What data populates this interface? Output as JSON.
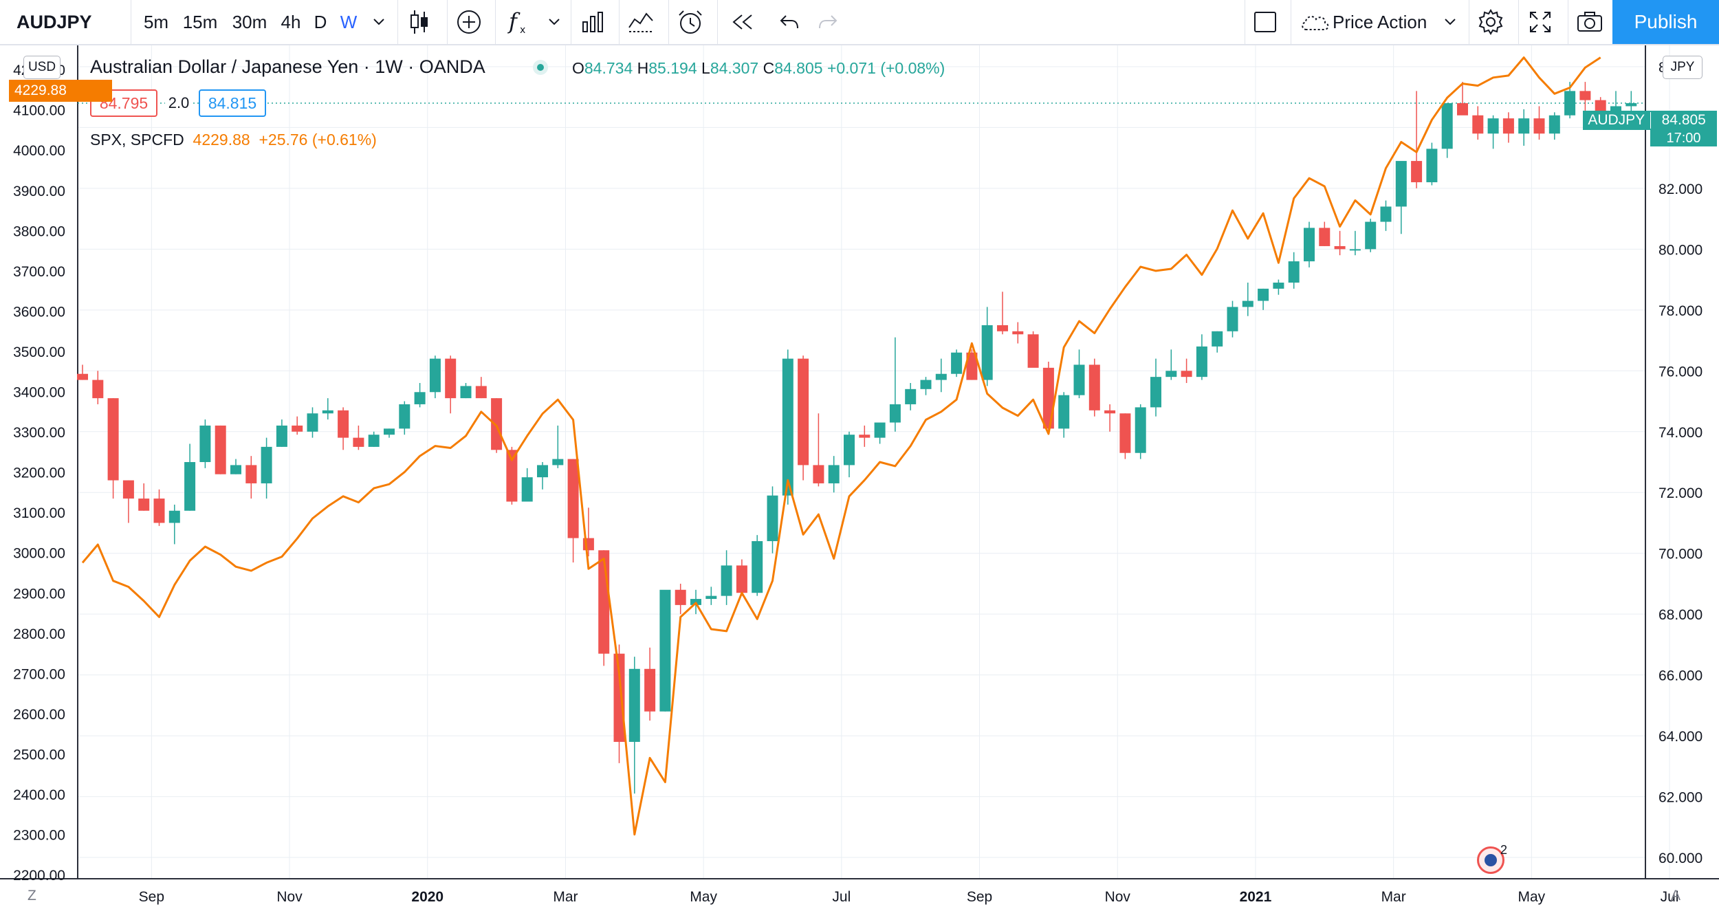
{
  "toolbar": {
    "symbol": "AUDJPY",
    "intervals": [
      "5m",
      "15m",
      "30m",
      "4h",
      "D",
      "W"
    ],
    "active_interval": "W",
    "template": "Price Action",
    "publish_label": "Publish"
  },
  "legend": {
    "title": "Australian Dollar / Japanese Yen · 1W · OANDA",
    "ohlc": {
      "o_label": "O",
      "o": "84.734",
      "h_label": "H",
      "h": "85.194",
      "l_label": "L",
      "l": "84.307",
      "c_label": "C",
      "c": "84.805",
      "change": "+0.071 (+0.08%)"
    },
    "bid": "84.795",
    "spread": "2.0",
    "ask": "84.815",
    "spx": {
      "name": "SPX, SPCFD",
      "value": "4229.88",
      "change": "+25.76 (+0.61%)"
    }
  },
  "left_axis": {
    "badge": "USD",
    "current_tag": "4229.88"
  },
  "right_axis": {
    "badge": "JPY",
    "current_symbol": "AUDJPY",
    "current_value": "84.805",
    "countdown": "17:00"
  },
  "bottom": {
    "z_label": "Z",
    "a_label": "A",
    "flag_count": "2"
  },
  "colors": {
    "up": "#26a69a",
    "down": "#ef5350",
    "spx_line": "#f57c00",
    "grid": "#e9eef3"
  },
  "chart_data": {
    "type": "candlestick+line",
    "timeframe": "1W",
    "x_tick_labels": [
      "Sep",
      "Nov",
      "2020",
      "Mar",
      "May",
      "Jul",
      "Sep",
      "Nov",
      "2021",
      "Mar",
      "May",
      "Jul"
    ],
    "left_ticks": [
      "2200.00",
      "2300.00",
      "2400.00",
      "2500.00",
      "2600.00",
      "2700.00",
      "2800.00",
      "2900.00",
      "3000.00",
      "3100.00",
      "3200.00",
      "3300.00",
      "3400.00",
      "3500.00",
      "3600.00",
      "3700.00",
      "3800.00",
      "3900.00",
      "4000.00",
      "4100.00",
      "4200.00"
    ],
    "right_ticks": [
      "60.000",
      "62.000",
      "64.000",
      "66.000",
      "68.000",
      "70.000",
      "72.000",
      "74.000",
      "76.000",
      "78.000",
      "80.000",
      "82.000",
      "84.000",
      "86.000"
    ],
    "left_range": [
      2190,
      4260
    ],
    "right_range": [
      59.3,
      86.7
    ],
    "candles": [
      [
        75.9,
        76.2,
        75.7,
        75.7
      ],
      [
        75.7,
        76.0,
        74.9,
        75.1
      ],
      [
        75.1,
        75.1,
        71.8,
        72.4
      ],
      [
        72.4,
        72.4,
        71.0,
        71.8
      ],
      [
        71.8,
        72.3,
        71.4,
        71.4
      ],
      [
        71.8,
        72.1,
        70.9,
        71.0
      ],
      [
        71.0,
        71.6,
        70.3,
        71.4
      ],
      [
        71.4,
        73.6,
        71.4,
        73.0
      ],
      [
        73.0,
        74.4,
        72.8,
        74.2
      ],
      [
        74.2,
        74.2,
        72.6,
        72.6
      ],
      [
        72.6,
        73.1,
        72.6,
        72.9
      ],
      [
        72.9,
        73.2,
        71.8,
        72.3
      ],
      [
        72.3,
        73.8,
        71.8,
        73.5
      ],
      [
        73.5,
        74.4,
        73.5,
        74.2
      ],
      [
        74.2,
        74.5,
        73.9,
        74.0
      ],
      [
        74.0,
        74.8,
        73.8,
        74.6
      ],
      [
        74.6,
        75.1,
        74.4,
        74.7
      ],
      [
        74.7,
        74.8,
        73.4,
        73.8
      ],
      [
        73.8,
        74.2,
        73.4,
        73.5
      ],
      [
        73.5,
        74.0,
        73.5,
        73.9
      ],
      [
        73.9,
        74.1,
        73.8,
        74.1
      ],
      [
        74.1,
        75.0,
        73.9,
        74.9
      ],
      [
        74.9,
        75.6,
        74.8,
        75.3
      ],
      [
        75.3,
        76.5,
        75.1,
        76.4
      ],
      [
        76.4,
        76.5,
        74.6,
        75.1
      ],
      [
        75.1,
        75.6,
        75.1,
        75.5
      ],
      [
        75.5,
        75.8,
        75.1,
        75.1
      ],
      [
        75.1,
        75.1,
        73.3,
        73.4
      ],
      [
        73.4,
        73.5,
        71.6,
        71.7
      ],
      [
        71.7,
        72.8,
        71.7,
        72.5
      ],
      [
        72.5,
        73.0,
        72.1,
        72.9
      ],
      [
        72.9,
        74.2,
        72.8,
        73.1
      ],
      [
        73.1,
        73.1,
        69.7,
        70.5
      ],
      [
        70.5,
        71.5,
        69.9,
        70.1
      ],
      [
        70.1,
        70.1,
        66.3,
        66.7
      ],
      [
        66.7,
        67.0,
        63.1,
        63.8
      ],
      [
        63.8,
        66.6,
        62.1,
        66.2
      ],
      [
        66.2,
        66.9,
        64.5,
        64.8
      ],
      [
        64.8,
        68.2,
        64.8,
        68.8
      ],
      [
        68.8,
        69.0,
        68.0,
        68.3
      ],
      [
        68.3,
        68.8,
        68.0,
        68.5
      ],
      [
        68.5,
        68.9,
        68.3,
        68.6
      ],
      [
        68.6,
        70.1,
        68.3,
        69.6
      ],
      [
        69.6,
        69.8,
        68.6,
        68.7
      ],
      [
        68.7,
        70.6,
        68.6,
        70.4
      ],
      [
        70.4,
        72.2,
        70.0,
        71.9
      ],
      [
        71.9,
        76.7,
        71.6,
        76.4
      ],
      [
        76.4,
        76.5,
        72.4,
        72.9
      ],
      [
        72.9,
        74.6,
        72.2,
        72.3
      ],
      [
        72.3,
        73.2,
        72.0,
        72.9
      ],
      [
        72.9,
        74.0,
        72.5,
        73.9
      ],
      [
        73.9,
        74.2,
        73.5,
        73.8
      ],
      [
        73.8,
        74.2,
        73.6,
        74.3
      ],
      [
        74.3,
        77.1,
        74.0,
        74.9
      ],
      [
        74.9,
        75.6,
        74.7,
        75.4
      ],
      [
        75.4,
        75.8,
        75.2,
        75.7
      ],
      [
        75.7,
        76.4,
        75.3,
        75.9
      ],
      [
        75.9,
        76.7,
        75.8,
        76.6
      ],
      [
        76.6,
        76.7,
        75.7,
        75.7
      ],
      [
        75.7,
        78.1,
        75.5,
        77.5
      ],
      [
        77.5,
        78.6,
        77.2,
        77.3
      ],
      [
        77.3,
        77.6,
        76.9,
        77.2
      ],
      [
        77.2,
        77.3,
        76.2,
        76.1
      ],
      [
        76.1,
        76.3,
        73.9,
        74.1
      ],
      [
        74.1,
        75.3,
        73.8,
        75.2
      ],
      [
        75.2,
        76.7,
        75.1,
        76.2
      ],
      [
        76.2,
        76.4,
        74.5,
        74.7
      ],
      [
        74.7,
        74.9,
        74.0,
        74.6
      ],
      [
        74.6,
        74.6,
        73.1,
        73.3
      ],
      [
        73.3,
        74.9,
        73.1,
        74.8
      ],
      [
        74.8,
        76.4,
        74.5,
        75.8
      ],
      [
        75.8,
        76.7,
        75.7,
        76.0
      ],
      [
        76.0,
        76.4,
        75.6,
        75.8
      ],
      [
        75.8,
        77.2,
        75.7,
        76.8
      ],
      [
        76.8,
        77.3,
        76.6,
        77.3
      ],
      [
        77.3,
        78.3,
        77.1,
        78.1
      ],
      [
        78.1,
        78.9,
        77.8,
        78.3
      ],
      [
        78.3,
        78.7,
        78.0,
        78.7
      ],
      [
        78.7,
        79.0,
        78.5,
        78.9
      ],
      [
        78.9,
        79.9,
        78.7,
        79.6
      ],
      [
        79.6,
        80.9,
        79.4,
        80.7
      ],
      [
        80.7,
        80.9,
        80.1,
        80.1
      ],
      [
        80.1,
        80.6,
        79.8,
        80.0
      ],
      [
        80.0,
        80.6,
        79.8,
        80.0
      ],
      [
        80.0,
        81.0,
        79.9,
        80.9
      ],
      [
        80.9,
        81.6,
        80.6,
        81.4
      ],
      [
        81.4,
        82.8,
        80.5,
        82.9
      ],
      [
        82.9,
        85.2,
        82.0,
        82.2
      ],
      [
        82.2,
        83.5,
        82.1,
        83.3
      ],
      [
        83.3,
        84.5,
        83.0,
        84.8
      ],
      [
        84.8,
        85.5,
        84.6,
        84.4
      ],
      [
        84.4,
        84.7,
        83.6,
        83.8
      ],
      [
        83.8,
        84.4,
        83.3,
        84.3
      ],
      [
        84.3,
        84.5,
        83.5,
        83.8
      ],
      [
        83.8,
        84.6,
        83.4,
        84.3
      ],
      [
        84.3,
        84.7,
        83.6,
        83.8
      ],
      [
        83.8,
        84.5,
        83.6,
        84.4
      ],
      [
        84.4,
        85.5,
        84.3,
        85.2
      ],
      [
        85.2,
        85.5,
        84.5,
        84.9
      ],
      [
        84.9,
        85.0,
        84.2,
        84.2
      ],
      [
        84.2,
        85.2,
        84.0,
        84.7
      ],
      [
        84.7,
        85.2,
        84.3,
        84.8
      ]
    ],
    "spx": [
      2975,
      3020,
      2930,
      2915,
      2880,
      2840,
      2920,
      2980,
      3015,
      2995,
      2965,
      2955,
      2975,
      2990,
      3035,
      3085,
      3115,
      3140,
      3125,
      3160,
      3170,
      3200,
      3240,
      3265,
      3260,
      3290,
      3350,
      3315,
      3230,
      3290,
      3345,
      3380,
      3330,
      2960,
      2985,
      2700,
      2300,
      2490,
      2430,
      2840,
      2875,
      2810,
      2805,
      2900,
      2835,
      2930,
      3180,
      3045,
      3095,
      2985,
      3140,
      3180,
      3225,
      3215,
      3265,
      3330,
      3350,
      3380,
      3520,
      3395,
      3360,
      3340,
      3380,
      3295,
      3510,
      3575,
      3545,
      3605,
      3660,
      3710,
      3700,
      3705,
      3740,
      3690,
      3755,
      3850,
      3780,
      3843,
      3720,
      3880,
      3930,
      3910,
      3810,
      3875,
      3840,
      3955,
      4020,
      3995,
      4075,
      4130,
      4165,
      4160,
      4180,
      4185,
      4230,
      4180,
      4140,
      4155,
      4205,
      4230
    ]
  }
}
